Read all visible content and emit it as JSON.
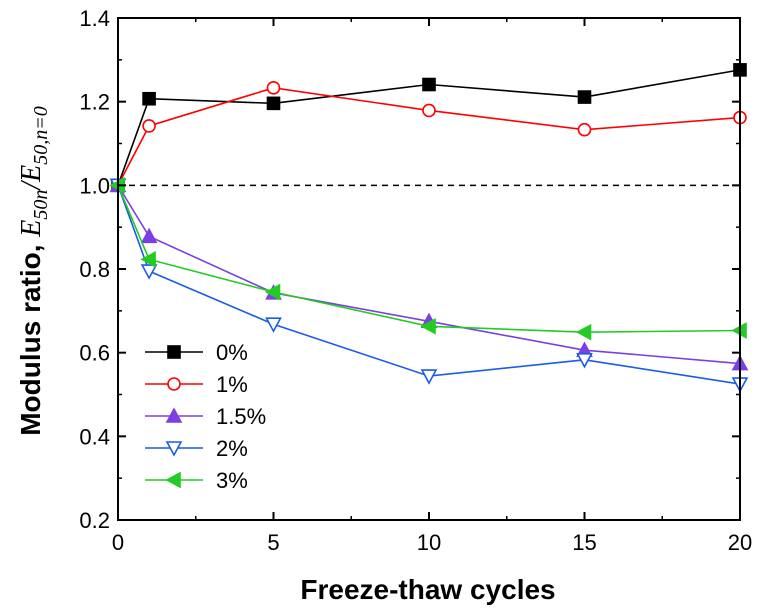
{
  "chart_data": {
    "type": "line",
    "title": "",
    "xlabel": "Freeze-thaw cycles",
    "ylabel_prefix": "Modulus ratio, ",
    "ylabel_math": "E50n/E50,n=0",
    "xlim": [
      0,
      20
    ],
    "ylim": [
      0.2,
      1.4
    ],
    "xticks": [
      0,
      5,
      10,
      15,
      20
    ],
    "yticks": [
      0.2,
      0.4,
      0.6,
      0.8,
      1.0,
      1.2,
      1.4
    ],
    "xtick_labels": [
      "0",
      "5",
      "10",
      "15",
      "20"
    ],
    "ytick_labels": [
      "0.2",
      "0.4",
      "0.6",
      "0.8",
      "1.0",
      "1.2",
      "1.4"
    ],
    "reference_line": {
      "y": 1.0,
      "style": "dashed"
    },
    "legend_position": "bottom-left",
    "x": [
      0,
      1,
      5,
      10,
      15,
      20
    ],
    "series": [
      {
        "name": "0%",
        "color": "#000000",
        "marker": "square-filled",
        "values": [
          1.0,
          1.207,
          1.196,
          1.241,
          1.211,
          1.276
        ]
      },
      {
        "name": "1%",
        "color": "#ff0000",
        "marker": "circle-open",
        "values": [
          1.0,
          1.142,
          1.233,
          1.179,
          1.133,
          1.162
        ]
      },
      {
        "name": "1.5%",
        "color": "#7b3fe4",
        "marker": "triangle-up-filled",
        "values": [
          1.0,
          0.878,
          0.743,
          0.675,
          0.606,
          0.574
        ]
      },
      {
        "name": "2%",
        "color": "#1a5ce6",
        "marker": "triangle-down-open",
        "values": [
          1.0,
          0.795,
          0.668,
          0.544,
          0.583,
          0.525
        ]
      },
      {
        "name": "3%",
        "color": "#22cc22",
        "marker": "triangle-left-filled",
        "values": [
          1.0,
          0.823,
          0.745,
          0.663,
          0.649,
          0.653
        ]
      }
    ]
  }
}
